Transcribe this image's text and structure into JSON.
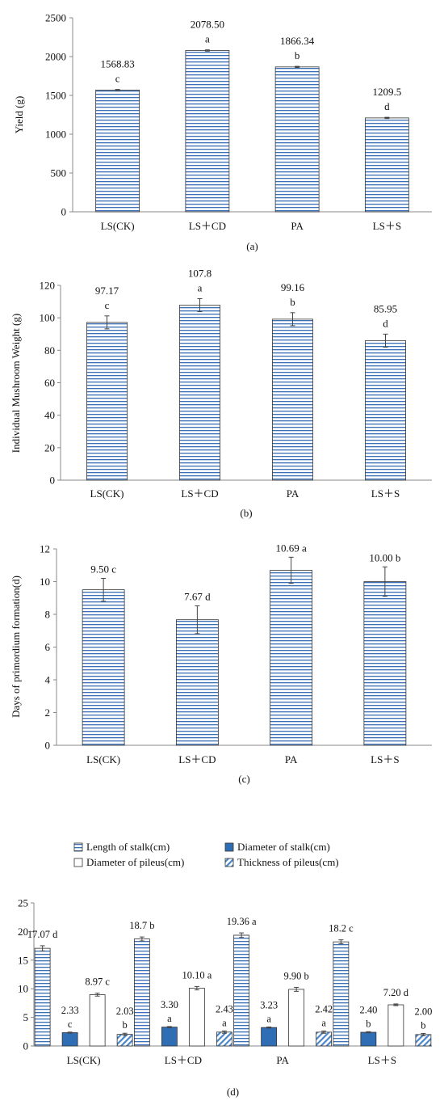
{
  "charts": [
    {
      "type": "bar",
      "ylabel": "Yield (g)",
      "categories": [
        "LS(CK)",
        "LS＋CD",
        "PA",
        "LS＋S"
      ],
      "ylim": [
        0,
        2500
      ],
      "yticks": [
        0,
        500,
        1000,
        1500,
        2000,
        2500
      ],
      "values": [
        1568.83,
        2078.5,
        1866.34,
        1209.5
      ],
      "value_labels": [
        "1568.83",
        "2078.50",
        "1866.34",
        "1209.5"
      ],
      "letters": [
        "c",
        "a",
        "b",
        "d"
      ],
      "errors": [
        8,
        8,
        8,
        8
      ],
      "caption": "(a)"
    },
    {
      "type": "bar",
      "ylabel": "Individual Mushroom Weight (g)",
      "categories": [
        "LS(CK)",
        "LS＋CD",
        "PA",
        "LS＋S"
      ],
      "ylim": [
        0,
        120
      ],
      "yticks": [
        0,
        20,
        40,
        60,
        80,
        100,
        120
      ],
      "values": [
        97.17,
        107.8,
        99.16,
        85.95
      ],
      "value_labels": [
        "97.17",
        "107.8",
        "99.16",
        "85.95"
      ],
      "letters": [
        "c",
        "a",
        "b",
        "d"
      ],
      "errors": [
        4,
        4,
        4,
        4
      ],
      "caption": "(b)"
    },
    {
      "type": "bar",
      "ylabel": "Days of primordium formation(d)",
      "categories": [
        "LS(CK)",
        "LS＋CD",
        "PA",
        "LS＋S"
      ],
      "ylim": [
        0,
        12
      ],
      "yticks": [
        0,
        2,
        4,
        6,
        8,
        10,
        12
      ],
      "values": [
        9.5,
        7.67,
        10.69,
        10.0
      ],
      "value_labels": [
        "9.50 c",
        "7.67 d",
        "10.69 a",
        "10.00 b"
      ],
      "errors": [
        0.7,
        0.85,
        0.8,
        0.9
      ],
      "caption": "(c)"
    },
    {
      "type": "bar",
      "categories": [
        "LS(CK)",
        "LS＋CD",
        "PA",
        "LS＋S"
      ],
      "ylim": [
        0,
        25
      ],
      "yticks": [
        0,
        5,
        10,
        15,
        20,
        25
      ],
      "legend_position": "top",
      "series": [
        {
          "name": "Length of stalk(cm)",
          "pattern": "hstripe",
          "values": [
            17.07,
            18.7,
            19.36,
            18.2
          ],
          "labels": [
            "17.07 d",
            "18.7 b",
            "19.36 a",
            "18.2 c"
          ],
          "errors": [
            0.45,
            0.35,
            0.4,
            0.35
          ]
        },
        {
          "name": "Diameter of stalk(cm)",
          "pattern": "solid",
          "values": [
            2.33,
            3.3,
            3.23,
            2.4
          ],
          "labels": [
            "2.33",
            "3.30",
            "3.23",
            "2.40"
          ],
          "letters": [
            "c",
            "a",
            "a",
            "b"
          ],
          "errors": [
            0.1,
            0.1,
            0.1,
            0.1
          ]
        },
        {
          "name": "Diameter of pileus(cm)",
          "pattern": "white",
          "values": [
            8.97,
            10.1,
            9.9,
            7.2
          ],
          "labels": [
            "8.97 c",
            "10.10 a",
            "9.90 b",
            "7.20 d"
          ],
          "errors": [
            0.25,
            0.3,
            0.35,
            0.15
          ]
        },
        {
          "name": "Thickness of pileus(cm)",
          "pattern": "diagonal",
          "values": [
            2.03,
            2.43,
            2.42,
            2.0
          ],
          "labels": [
            "2.03",
            "2.43",
            "2.42",
            "2.00"
          ],
          "letters": [
            "b",
            "a",
            "a",
            "b"
          ],
          "errors": [
            0.2,
            0.2,
            0.2,
            0.2
          ]
        }
      ],
      "caption": "(d)"
    }
  ],
  "colors": {
    "stripe": "#3a6fb5",
    "solid": "#2f6db5",
    "diag": "#4a86c8",
    "axis": "#888888"
  }
}
